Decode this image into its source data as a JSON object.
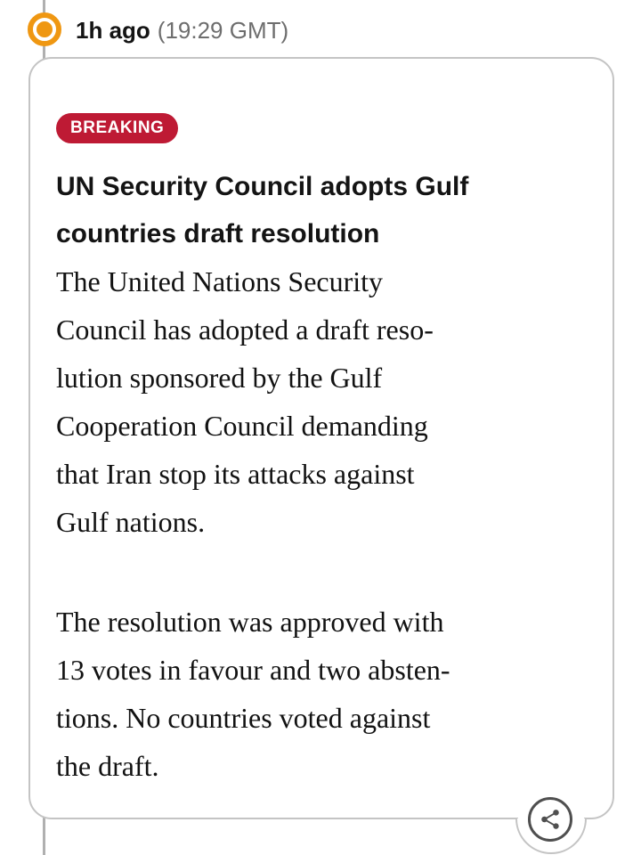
{
  "header": {
    "time_ago": "1h ago",
    "time_absolute": "(19:29 GMT)"
  },
  "post": {
    "badge_label": "BREAKING",
    "headline_lines": [
      "UN Security Council adopts Gulf",
      "countries draft resolution"
    ],
    "paragraphs": [
      {
        "lines": [
          "The United Nations Security",
          "Council has adopted a draft reso-",
          "lution sponsored by the Gulf",
          "Cooperation Council demanding",
          "that Iran stop its attacks against",
          "Gulf nations."
        ]
      },
      {
        "lines": [
          "The resolution was approved with",
          "13 votes in favour and two absten-",
          "tions. No countries voted against",
          "the draft."
        ]
      }
    ],
    "share_icon": "share-icon"
  },
  "colors": {
    "accent_orange": "#EF9712",
    "badge_red": "#BE1A34",
    "card_border": "#C4C4C4",
    "timeline_gray": "#B0B0B0",
    "muted_text": "#6E6E6E",
    "icon_gray": "#4F4F4F",
    "text_black": "#141414"
  }
}
